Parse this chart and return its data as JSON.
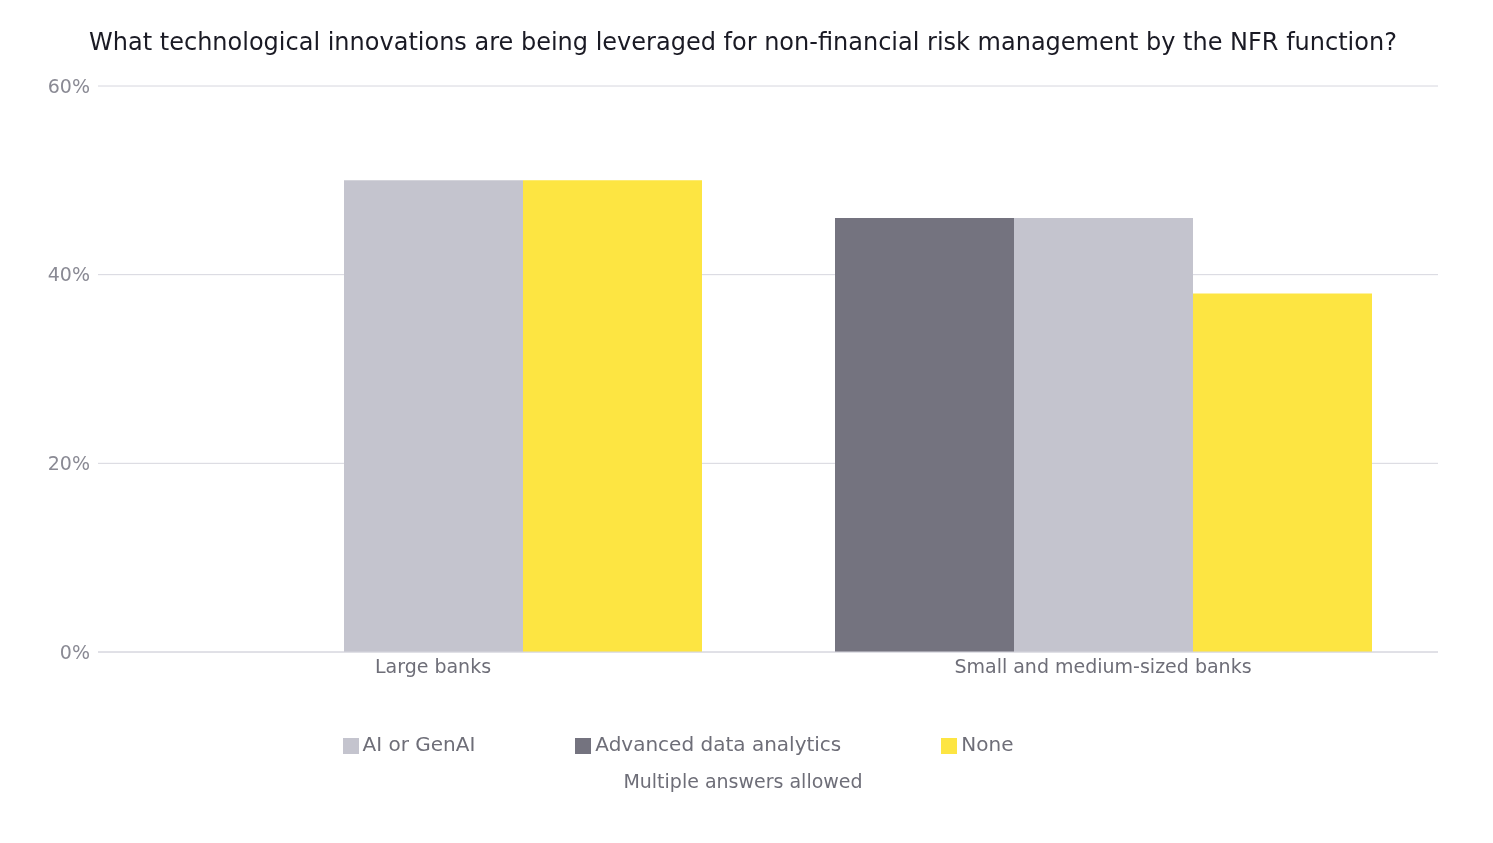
{
  "chart_data": {
    "type": "bar",
    "title": "What technological innovations are being leveraged for non-financial risk management by the NFR function?",
    "categories": [
      "Large banks",
      "Small and medium-sized banks"
    ],
    "series": [
      {
        "name": "Advanced data analytics",
        "color": "#74737f",
        "values": [
          null,
          46
        ]
      },
      {
        "name": "AI or GenAI",
        "color": "#c4c4ce",
        "values": [
          50,
          46
        ]
      },
      {
        "name": "None",
        "color": "#fde542",
        "values": [
          50,
          38
        ]
      }
    ],
    "ylim": [
      0,
      60
    ],
    "yticks": [
      {
        "value": 0,
        "label": "0%"
      },
      {
        "value": 20,
        "label": "20%"
      },
      {
        "value": 40,
        "label": "40%"
      },
      {
        "value": 60,
        "label": "60%"
      }
    ],
    "grid": "y",
    "legend": "bottom",
    "annotations": [
      "Multiple answers allowed"
    ]
  }
}
